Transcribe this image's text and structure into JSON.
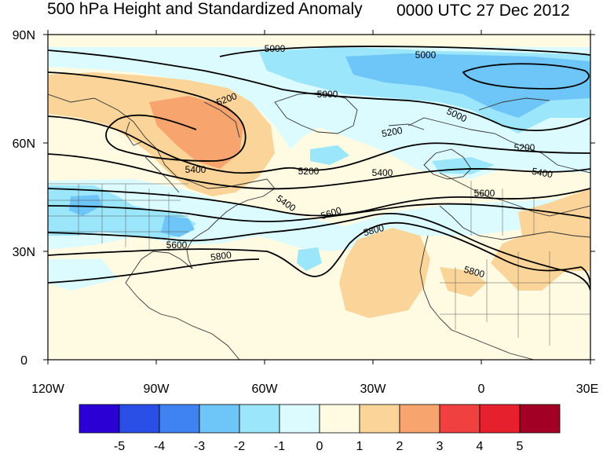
{
  "title": "500 hPa Height and Standardized Anomaly",
  "valid_time": "0000 UTC 27 Dec 2012",
  "axes": {
    "lat_labels": [
      "90N",
      "60N",
      "30N",
      "0"
    ],
    "lon_labels": [
      "120W",
      "90W",
      "60W",
      "30W",
      "0",
      "30E"
    ]
  },
  "contour_labels": [
    "5000",
    "5000",
    "5000",
    "5000",
    "5200",
    "5200",
    "5200",
    "5200",
    "5400",
    "5400",
    "5400",
    "5400",
    "5600",
    "5600",
    "5600",
    "5800",
    "5800",
    "5800"
  ],
  "colorbar": {
    "ticks": [
      "-5",
      "-4",
      "-3",
      "-2",
      "-1",
      "0",
      "1",
      "2",
      "3",
      "4",
      "5"
    ],
    "colors": [
      "#2a00d4",
      "#2a4fe6",
      "#3f83f2",
      "#6ec5f7",
      "#9be6fb",
      "#dcfbff",
      "#fffbe3",
      "#fbd49a",
      "#f8a46e",
      "#f04040",
      "#e6202c",
      "#a30026"
    ]
  }
}
